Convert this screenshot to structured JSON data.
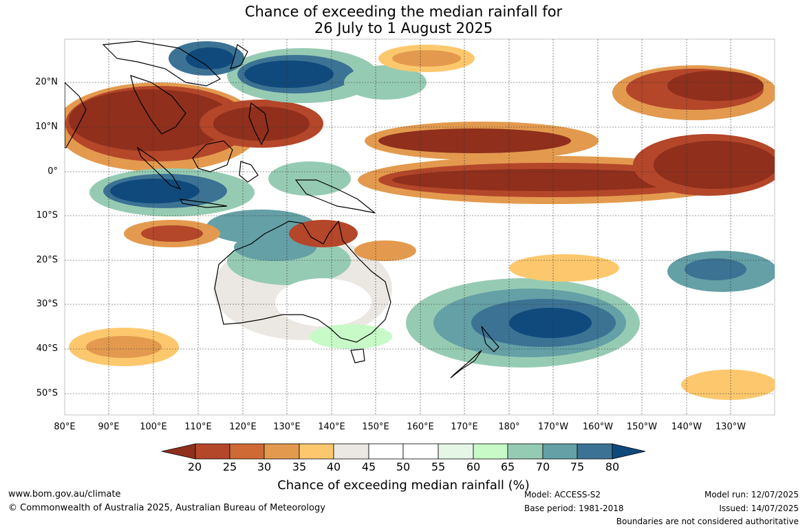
{
  "title": {
    "line1": "Chance of exceeding the median rainfall for",
    "line2": "26 July to 1 August 2025"
  },
  "map": {
    "lat_labels": [
      "20°N",
      "10°N",
      "0°",
      "10°S",
      "20°S",
      "30°S",
      "40°S",
      "50°S"
    ],
    "lon_labels": [
      "80°E",
      "90°E",
      "100°E",
      "110°E",
      "120°E",
      "130°E",
      "140°E",
      "150°E",
      "160°E",
      "170°E",
      "180°",
      "170°W",
      "160°W",
      "150°W",
      "140°W",
      "130°W"
    ],
    "colors": {
      "c20": "#8f2f1c",
      "c25": "#b4462a",
      "c30": "#cf6a35",
      "c35": "#e39a4e",
      "c40": "#fdc86d",
      "c45": "#ebe8e3",
      "c50": "#ffffff",
      "c55": "#ffffff",
      "c60": "#e6f6e6",
      "c65": "#c7fac7",
      "c70": "#96cbb3",
      "c75": "#64a0a6",
      "c80": "#3c7394",
      "c85": "#104a7d"
    }
  },
  "colorbar": {
    "ticks": [
      "20",
      "25",
      "30",
      "35",
      "40",
      "45",
      "50",
      "55",
      "60",
      "65",
      "70",
      "75",
      "80"
    ],
    "label": "Chance of exceeding median rainfall (%)"
  },
  "footer": {
    "website": "www.bom.gov.au/climate",
    "copyright": "© Commonwealth of Australia 2025, Australian Bureau of Meteorology",
    "model": "Model: ACCESS-S2",
    "base_period": "Base period: 1981-2018",
    "model_run": "Model run: 12/07/2025",
    "issued": "Issued: 14/07/2025",
    "disclaimer": "Boundaries are not considered authoritative"
  }
}
